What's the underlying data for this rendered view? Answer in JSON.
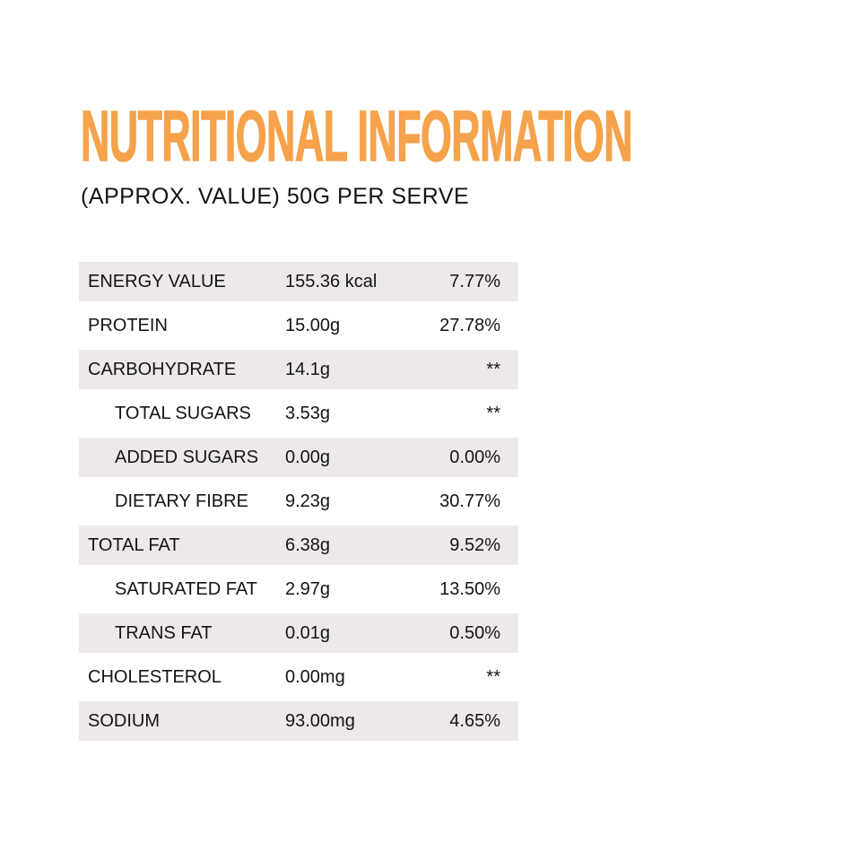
{
  "title": "NUTRITIONAL INFORMATION",
  "subtitle": "(APPROX. VALUE) 50G PER SERVE",
  "colors": {
    "accent": "#F5A24B",
    "row_shade": "#EDE9E9",
    "text": "#141414"
  },
  "table": {
    "rows": [
      {
        "label": "ENERGY VALUE",
        "value": "155.36 kcal",
        "rda": "7.77%",
        "indent": false,
        "shaded": true
      },
      {
        "label": "PROTEIN",
        "value": "15.00g",
        "rda": "27.78%",
        "indent": false,
        "shaded": false
      },
      {
        "label": "CARBOHYDRATE",
        "value": "14.1g",
        "rda": "**",
        "indent": false,
        "shaded": true
      },
      {
        "label": "TOTAL SUGARS",
        "value": "3.53g",
        "rda": "**",
        "indent": true,
        "shaded": false
      },
      {
        "label": "ADDED SUGARS",
        "value": "0.00g",
        "rda": "0.00%",
        "indent": true,
        "shaded": true
      },
      {
        "label": "DIETARY FIBRE",
        "value": "9.23g",
        "rda": "30.77%",
        "indent": true,
        "shaded": false
      },
      {
        "label": "TOTAL FAT",
        "value": "6.38g",
        "rda": "9.52%",
        "indent": false,
        "shaded": true
      },
      {
        "label": "SATURATED FAT",
        "value": "2.97g",
        "rda": "13.50%",
        "indent": true,
        "shaded": false
      },
      {
        "label": "TRANS FAT",
        "value": "0.01g",
        "rda": "0.50%",
        "indent": true,
        "shaded": true
      },
      {
        "label": "CHOLESTEROL",
        "value": "0.00mg",
        "rda": "**",
        "indent": false,
        "shaded": false
      },
      {
        "label": "SODIUM",
        "value": "93.00mg",
        "rda": "4.65%",
        "indent": false,
        "shaded": true
      }
    ]
  }
}
